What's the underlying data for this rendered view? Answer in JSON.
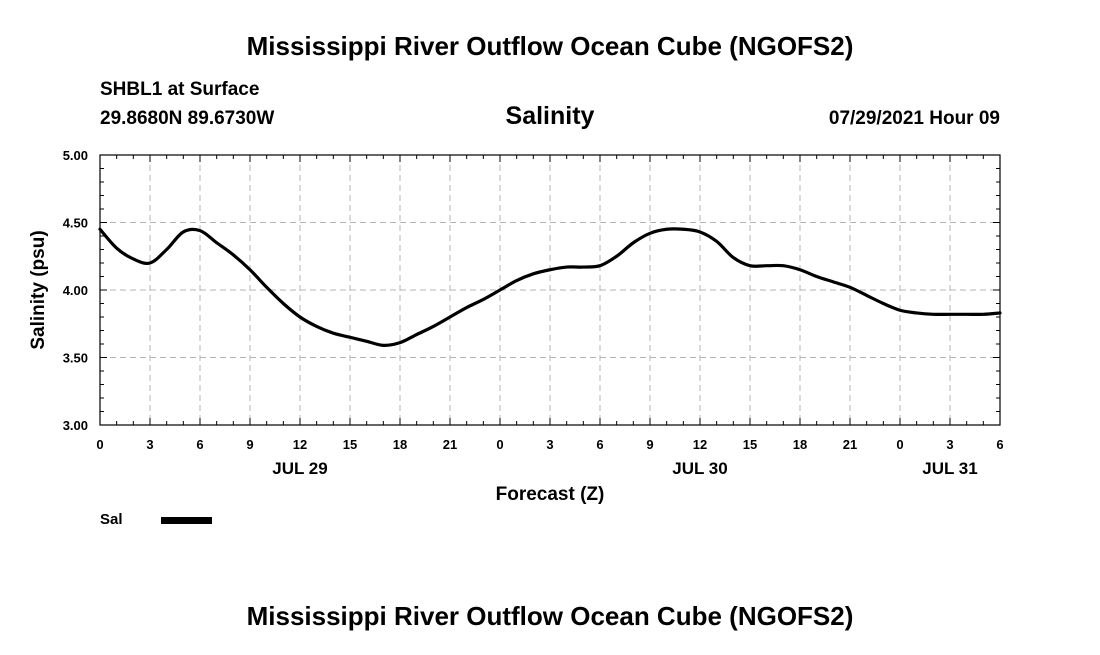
{
  "title_top": "Mississippi River Outflow Ocean Cube (NGOFS2)",
  "title_bottom": "Mississippi River Outflow Ocean Cube (NGOFS2)",
  "header": {
    "station": "SHBL1 at Surface",
    "location": "29.8680N  89.6730W",
    "variable": "Salinity",
    "date": "07/29/2021 Hour 09"
  },
  "colors": {
    "line": "#000000",
    "grid": "#b4b4b4",
    "axis": "#000000",
    "background": "#ffffff"
  },
  "chart_data": {
    "type": "line",
    "title": "Salinity",
    "xlabel": "Forecast (Z)",
    "ylabel": "Salinity (psu)",
    "xlim": [
      0,
      54
    ],
    "ylim": [
      3.0,
      5.0
    ],
    "x_ticks": [
      0,
      3,
      6,
      9,
      12,
      15,
      18,
      21,
      24,
      27,
      30,
      33,
      36,
      39,
      42,
      45,
      48,
      51,
      54
    ],
    "x_tick_labels": [
      "0",
      "3",
      "6",
      "9",
      "12",
      "15",
      "18",
      "21",
      "0",
      "3",
      "6",
      "9",
      "12",
      "15",
      "18",
      "21",
      "0",
      "3",
      "6"
    ],
    "y_ticks": [
      3.0,
      3.5,
      4.0,
      4.5,
      5.0
    ],
    "y_tick_labels": [
      "3.00",
      "3.50",
      "4.00",
      "4.50",
      "5.00"
    ],
    "date_labels": [
      {
        "x": 12,
        "label": "JUL 29"
      },
      {
        "x": 36,
        "label": "JUL 30"
      },
      {
        "x": 51,
        "label": "JUL 31"
      }
    ],
    "grid": true,
    "legend_position": "bottom-left",
    "series": [
      {
        "name": "Sal",
        "x": [
          0,
          1,
          2,
          3,
          4,
          5,
          6,
          7,
          8,
          9,
          10,
          11,
          12,
          13,
          14,
          15,
          16,
          17,
          18,
          19,
          20,
          21,
          22,
          23,
          24,
          25,
          26,
          27,
          28,
          29,
          30,
          31,
          32,
          33,
          34,
          35,
          36,
          37,
          38,
          39,
          40,
          41,
          42,
          43,
          44,
          45,
          46,
          47,
          48,
          49,
          50,
          51,
          52,
          53,
          54
        ],
        "values": [
          4.45,
          4.31,
          4.23,
          4.2,
          4.3,
          4.43,
          4.44,
          4.35,
          4.26,
          4.15,
          4.02,
          3.9,
          3.8,
          3.73,
          3.68,
          3.65,
          3.62,
          3.59,
          3.61,
          3.67,
          3.73,
          3.8,
          3.87,
          3.93,
          4.0,
          4.07,
          4.12,
          4.15,
          4.17,
          4.17,
          4.18,
          4.25,
          4.35,
          4.42,
          4.45,
          4.45,
          4.43,
          4.36,
          4.24,
          4.18,
          4.18,
          4.18,
          4.15,
          4.1,
          4.06,
          4.02,
          3.96,
          3.9,
          3.85,
          3.83,
          3.82,
          3.82,
          3.82,
          3.82,
          3.83
        ]
      }
    ]
  }
}
